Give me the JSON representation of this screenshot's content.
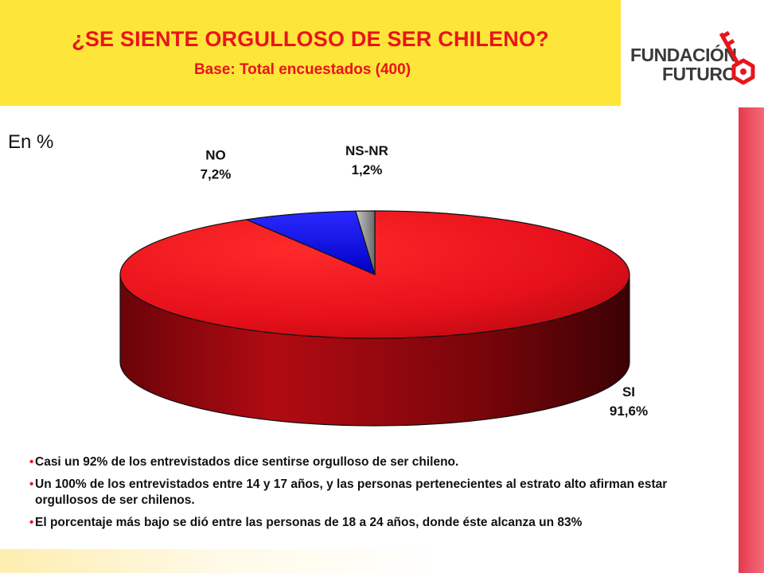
{
  "header": {
    "title": "¿SE SIENTE ORGULLOSO DE SER CHILENO?",
    "subtitle": "Base:  Total encuestados (400)"
  },
  "logo": {
    "line1": "FUNDACIÓN",
    "line2": "FUTURO",
    "icon": "key-icon",
    "color": "#e8141c"
  },
  "chart_data": {
    "type": "pie",
    "unit_label": "En %",
    "slices": [
      {
        "label": "SI",
        "value": 91.6,
        "value_label": "91,6%",
        "color": "#e8141c"
      },
      {
        "label": "NO",
        "value": 7.2,
        "value_label": "7,2%",
        "color": "#1010e8"
      },
      {
        "label": "NS-NR",
        "value": 1.2,
        "value_label": "1,2%",
        "color": "#9a9a9a"
      }
    ]
  },
  "notes": [
    "Casi un 92% de los entrevistados dice sentirse orgulloso de ser chileno.",
    "Un 100% de los entrevistados entre 14 y 17 años, y las personas pertenecientes al estrato alto afirman estar orgullosos de ser chilenos.",
    "El porcentaje más bajo se dió entre las personas de 18 a 24 años, donde éste alcanza un 83%"
  ]
}
